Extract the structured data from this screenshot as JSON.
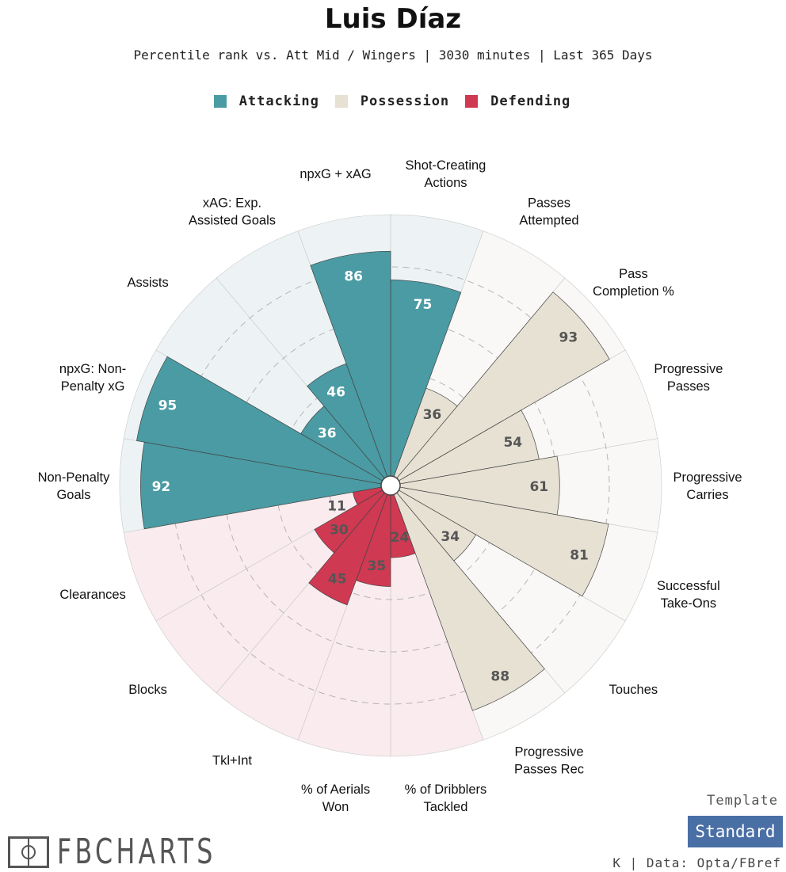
{
  "header": {
    "title": "Luis Díaz",
    "subtitle": "Percentile rank vs. Att Mid / Wingers | 3030 minutes | Last 365 Days"
  },
  "legend": [
    {
      "label": "Attacking",
      "color": "#4a9ba3"
    },
    {
      "label": "Possession",
      "color": "#e6e1d3"
    },
    {
      "label": "Defending",
      "color": "#cf3952"
    }
  ],
  "chart_data": {
    "type": "polar-bar",
    "title": "Luis Díaz",
    "range": [
      0,
      100
    ],
    "categories": [
      {
        "label": "Shot-Creating\nActions",
        "value": 75,
        "group": "Attacking"
      },
      {
        "label": "Passes\nAttempted",
        "value": 36,
        "group": "Possession"
      },
      {
        "label": "Pass\nCompletion %",
        "value": 93,
        "group": "Possession"
      },
      {
        "label": "Progressive\nPasses",
        "value": 54,
        "group": "Possession"
      },
      {
        "label": "Progressive\nCarries",
        "value": 61,
        "group": "Possession"
      },
      {
        "label": "Successful\nTake-Ons",
        "value": 81,
        "group": "Possession"
      },
      {
        "label": "Touches",
        "value": 34,
        "group": "Possession"
      },
      {
        "label": "Progressive\nPasses Rec",
        "value": 88,
        "group": "Possession"
      },
      {
        "label": "% of Dribblers\nTackled",
        "value": 24,
        "group": "Defending"
      },
      {
        "label": "% of Aerials\nWon",
        "value": 35,
        "group": "Defending"
      },
      {
        "label": "Tkl+Int",
        "value": 45,
        "group": "Defending"
      },
      {
        "label": "Blocks",
        "value": 30,
        "group": "Defending"
      },
      {
        "label": "Clearances",
        "value": 11,
        "group": "Defending"
      },
      {
        "label": "Non-Penalty\nGoals",
        "value": 92,
        "group": "Attacking"
      },
      {
        "label": "npxG: Non-\nPenalty xG",
        "value": 95,
        "group": "Attacking"
      },
      {
        "label": "Assists",
        "value": 36,
        "group": "Attacking"
      },
      {
        "label": "xAG: Exp.\nAssisted Goals",
        "value": 46,
        "group": "Attacking"
      },
      {
        "label": "npxG + xAG",
        "value": 86,
        "group": "Attacking"
      }
    ],
    "group_colors": {
      "Attacking": {
        "bar": "#4a9ba3",
        "bg": "#edf3f5",
        "text": "#ffffff"
      },
      "Possession": {
        "bar": "#e6e1d3",
        "bg": "#f9f8f6",
        "text": "#555555"
      },
      "Defending": {
        "bar": "#cf3952",
        "bg": "#f9ebee",
        "text": "#555555"
      }
    },
    "grid": true
  },
  "footer": {
    "logo_text": "FBCHARTS",
    "template_label": "Template",
    "template_value": "Standard",
    "credit": "K | Data: Opta/FBref"
  }
}
